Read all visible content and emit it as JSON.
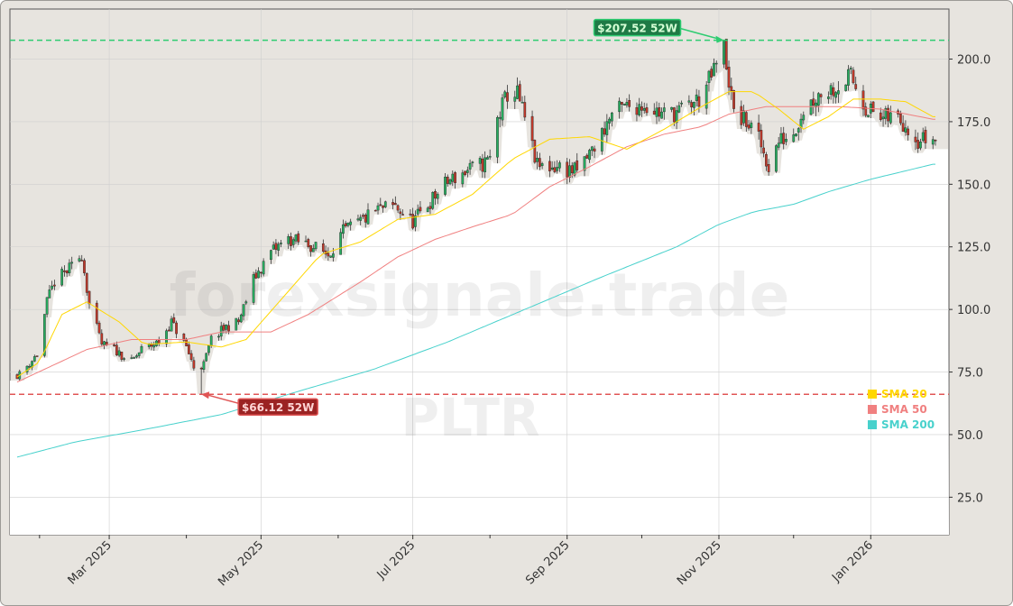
{
  "chart_data": {
    "type": "candlestick",
    "ticker": "PLTR",
    "watermark": "forexsignale.trade",
    "y_axis": {
      "ticks": [
        25.0,
        50.0,
        75.0,
        100.0,
        125.0,
        150.0,
        175.0,
        200.0
      ],
      "labels": [
        "25.0",
        "50.0",
        "75.0",
        "100.0",
        "125.0",
        "150.0",
        "175.0",
        "200.0"
      ],
      "range": [
        10,
        220
      ]
    },
    "x_axis": {
      "labels": [
        "Mar 2025",
        "May 2025",
        "Jul 2025",
        "Sep 2025",
        "Nov 2025",
        "Jan 2026"
      ],
      "label_dates": [
        "2025-03-01",
        "2025-05-01",
        "2025-07-01",
        "2025-09-01",
        "2025-11-01",
        "2026-01-01"
      ],
      "range": [
        "2025-01-23",
        "2026-01-27"
      ]
    },
    "grid": true,
    "legend": {
      "position": "lower-right",
      "entries": [
        {
          "name": "SMA 20",
          "color": "#FFD700"
        },
        {
          "name": "SMA 50",
          "color": "#F08080"
        },
        {
          "name": "SMA 200",
          "color": "#48D1CC"
        }
      ]
    },
    "annotations": {
      "high_52w": {
        "label": "$207.52 52W",
        "value": 207.52,
        "date": "2025-11-03",
        "color": "#2ecc71"
      },
      "low_52w": {
        "label": "$66.12 52W",
        "value": 66.12,
        "date": "2025-04-07",
        "color": "#e05555"
      }
    },
    "candle_colors": {
      "up": "#27ae60",
      "down": "#c0392b"
    },
    "price_anchors": [
      [
        "2025-01-24",
        74
      ],
      [
        "2025-01-31",
        82
      ],
      [
        "2025-02-04",
        103
      ],
      [
        "2025-02-07",
        111
      ],
      [
        "2025-02-14",
        117
      ],
      [
        "2025-02-18",
        122
      ],
      [
        "2025-02-21",
        102
      ],
      [
        "2025-02-26",
        86
      ],
      [
        "2025-03-03",
        84
      ],
      [
        "2025-03-10",
        79
      ],
      [
        "2025-03-14",
        84
      ],
      [
        "2025-03-21",
        87
      ],
      [
        "2025-03-26",
        95
      ],
      [
        "2025-04-01",
        85
      ],
      [
        "2025-04-04",
        77
      ],
      [
        "2025-04-08",
        78
      ],
      [
        "2025-04-11",
        88
      ],
      [
        "2025-04-17",
        93
      ],
      [
        "2025-04-22",
        95
      ],
      [
        "2025-04-28",
        112
      ],
      [
        "2025-05-05",
        123
      ],
      [
        "2025-05-12",
        128
      ],
      [
        "2025-05-20",
        126
      ],
      [
        "2025-05-28",
        122
      ],
      [
        "2025-06-03",
        131
      ],
      [
        "2025-06-10",
        135
      ],
      [
        "2025-06-17",
        140
      ],
      [
        "2025-06-24",
        141
      ],
      [
        "2025-07-01",
        135
      ],
      [
        "2025-07-08",
        143
      ],
      [
        "2025-07-15",
        151
      ],
      [
        "2025-07-22",
        155
      ],
      [
        "2025-07-29",
        158
      ],
      [
        "2025-08-01",
        160
      ],
      [
        "2025-08-04",
        176
      ],
      [
        "2025-08-08",
        186
      ],
      [
        "2025-08-12",
        186
      ],
      [
        "2025-08-15",
        176
      ],
      [
        "2025-08-20",
        157
      ],
      [
        "2025-08-28",
        157
      ],
      [
        "2025-09-05",
        155
      ],
      [
        "2025-09-12",
        165
      ],
      [
        "2025-09-19",
        178
      ],
      [
        "2025-09-25",
        181
      ],
      [
        "2025-10-02",
        182
      ],
      [
        "2025-10-09",
        178
      ],
      [
        "2025-10-16",
        179
      ],
      [
        "2025-10-24",
        184
      ],
      [
        "2025-10-29",
        193
      ],
      [
        "2025-11-03",
        205
      ],
      [
        "2025-11-07",
        178
      ],
      [
        "2025-11-12",
        175
      ],
      [
        "2025-11-17",
        168
      ],
      [
        "2025-11-21",
        157
      ],
      [
        "2025-11-25",
        167
      ],
      [
        "2025-12-01",
        171
      ],
      [
        "2025-12-05",
        180
      ],
      [
        "2025-12-11",
        186
      ],
      [
        "2025-12-18",
        189
      ],
      [
        "2025-12-24",
        193
      ],
      [
        "2025-12-30",
        181
      ],
      [
        "2026-01-05",
        176
      ],
      [
        "2026-01-12",
        177
      ],
      [
        "2026-01-16",
        173
      ],
      [
        "2026-01-20",
        168
      ],
      [
        "2026-01-26",
        168
      ]
    ],
    "sma20_anchors": [
      [
        "2025-01-23",
        73
      ],
      [
        "2025-02-01",
        79
      ],
      [
        "2025-02-10",
        98
      ],
      [
        "2025-02-20",
        103
      ],
      [
        "2025-03-05",
        95
      ],
      [
        "2025-03-15",
        86
      ],
      [
        "2025-04-01",
        87
      ],
      [
        "2025-04-15",
        85
      ],
      [
        "2025-04-25",
        88
      ],
      [
        "2025-05-10",
        105
      ],
      [
        "2025-05-25",
        122
      ],
      [
        "2025-06-10",
        127
      ],
      [
        "2025-06-25",
        136
      ],
      [
        "2025-07-10",
        138
      ],
      [
        "2025-07-25",
        146
      ],
      [
        "2025-08-10",
        160
      ],
      [
        "2025-08-25",
        168
      ],
      [
        "2025-09-10",
        169
      ],
      [
        "2025-09-25",
        164
      ],
      [
        "2025-10-10",
        172
      ],
      [
        "2025-10-25",
        181
      ],
      [
        "2025-11-05",
        187
      ],
      [
        "2025-11-15",
        187
      ],
      [
        "2025-11-25",
        180
      ],
      [
        "2025-12-05",
        172
      ],
      [
        "2025-12-15",
        177
      ],
      [
        "2025-12-25",
        184
      ],
      [
        "2026-01-05",
        184
      ],
      [
        "2026-01-15",
        183
      ],
      [
        "2026-01-26",
        177
      ]
    ],
    "sma50_anchors": [
      [
        "2025-01-23",
        71
      ],
      [
        "2025-02-20",
        84
      ],
      [
        "2025-03-10",
        88
      ],
      [
        "2025-04-01",
        88
      ],
      [
        "2025-04-15",
        91
      ],
      [
        "2025-05-05",
        91
      ],
      [
        "2025-05-20",
        98
      ],
      [
        "2025-06-10",
        111
      ],
      [
        "2025-06-25",
        121
      ],
      [
        "2025-07-10",
        128
      ],
      [
        "2025-07-25",
        133
      ],
      [
        "2025-08-10",
        138
      ],
      [
        "2025-08-25",
        149
      ],
      [
        "2025-09-10",
        157
      ],
      [
        "2025-09-25",
        165
      ],
      [
        "2025-10-10",
        170
      ],
      [
        "2025-10-25",
        173
      ],
      [
        "2025-11-05",
        178
      ],
      [
        "2025-11-20",
        181
      ],
      [
        "2025-12-05",
        181
      ],
      [
        "2025-12-20",
        181
      ],
      [
        "2026-01-05",
        180
      ],
      [
        "2026-01-26",
        176
      ]
    ],
    "sma200_anchors": [
      [
        "2025-01-23",
        41
      ],
      [
        "2025-02-15",
        47
      ],
      [
        "2025-03-15",
        52
      ],
      [
        "2025-04-15",
        58
      ],
      [
        "2025-05-15",
        67
      ],
      [
        "2025-06-15",
        76
      ],
      [
        "2025-07-15",
        87
      ],
      [
        "2025-08-15",
        100
      ],
      [
        "2025-09-15",
        113
      ],
      [
        "2025-10-15",
        125
      ],
      [
        "2025-11-01",
        134
      ],
      [
        "2025-11-15",
        139
      ],
      [
        "2025-12-01",
        142
      ],
      [
        "2025-12-15",
        147
      ],
      [
        "2026-01-01",
        152
      ],
      [
        "2026-01-26",
        158
      ]
    ]
  }
}
